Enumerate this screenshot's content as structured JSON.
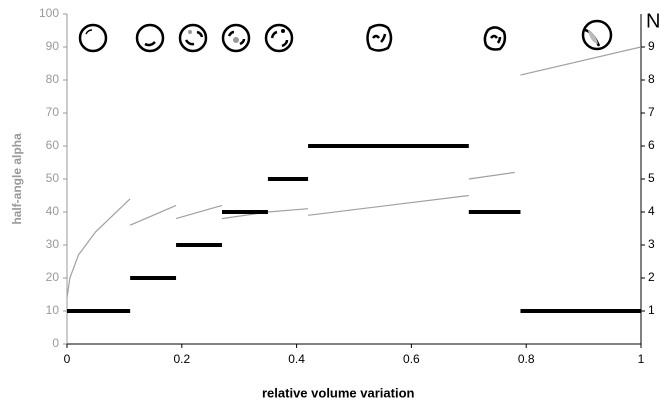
{
  "chart_data": {
    "type": "line",
    "xlabel": "relative volume variation",
    "ylabel": "half-angle alpha",
    "y2label": "N",
    "xlim": [
      0,
      1
    ],
    "xticks": [
      0,
      0.2,
      0.4,
      0.6,
      0.8,
      1
    ],
    "ylim": [
      0,
      100
    ],
    "yticks": [
      0,
      10,
      20,
      30,
      40,
      50,
      60,
      70,
      80,
      90,
      100
    ],
    "y2lim": [
      0,
      10
    ],
    "y2ticks": [
      1,
      2,
      3,
      4,
      5,
      6,
      7,
      8,
      9
    ],
    "series": [
      {
        "color": "#a0a0a0",
        "x": [
          0,
          0.005,
          0.02,
          0.05,
          0.08,
          0.11,
          null,
          0.11,
          0.19,
          null,
          0.19,
          0.27,
          null,
          0.27,
          0.35,
          0.42,
          null,
          0.42,
          0.7,
          null,
          0.7,
          0.78,
          null,
          0.79,
          1
        ],
        "values": [
          14,
          20,
          27,
          34,
          39,
          44,
          null,
          36,
          42,
          null,
          38,
          42,
          null,
          38,
          40,
          41,
          null,
          39,
          45,
          null,
          50,
          52,
          null,
          81.5,
          90
        ]
      },
      {
        "color": "#000000",
        "axis": "y2",
        "x": [
          0,
          0.11,
          null,
          0.11,
          0.19,
          null,
          0.19,
          0.27,
          null,
          0.27,
          0.35,
          null,
          0.35,
          0.42,
          null,
          0.42,
          0.7,
          null,
          0.7,
          0.79,
          null,
          0.79,
          1
        ],
        "values": [
          1,
          1,
          null,
          2,
          2,
          null,
          3,
          3,
          null,
          4,
          4,
          null,
          5,
          5,
          null,
          6,
          6,
          null,
          4,
          4,
          null,
          1,
          1
        ]
      }
    ]
  }
}
